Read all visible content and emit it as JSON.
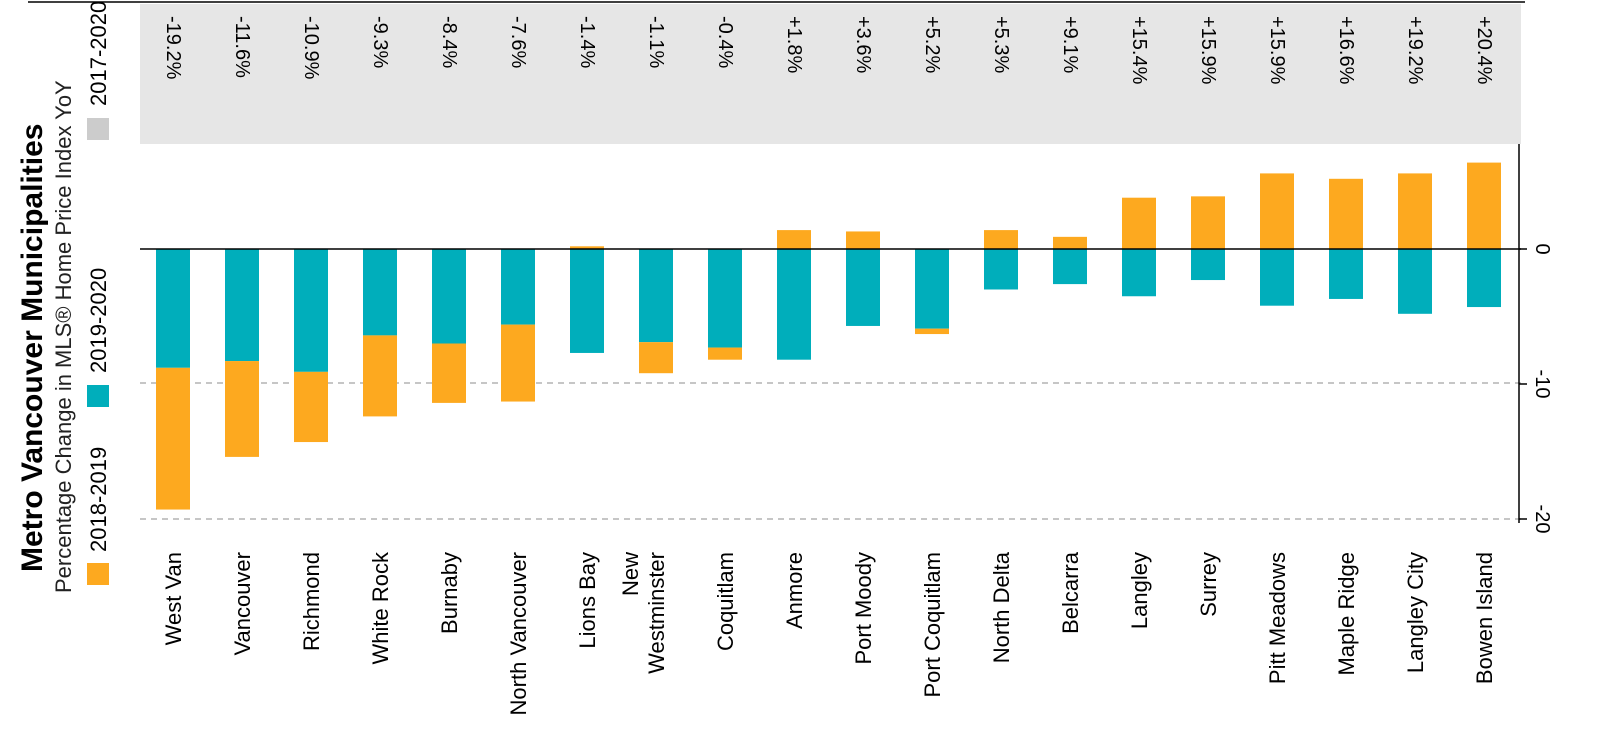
{
  "chart_data": {
    "type": "bar",
    "stacked": true,
    "orientation": "rotated-90-clockwise",
    "title": "Metro Vancouver Municipalities",
    "subtitle": "Percentage Change in MLS® Home Price Index YoY",
    "categories": [
      "West Van",
      "Vancouver",
      "Richmond",
      "White Rock",
      "Burnaby",
      "North Vancouver",
      "Lions Bay",
      "New Westminster",
      "Coquitlam",
      "Anmore",
      "Port Moody",
      "Port Coquitlam",
      "North Delta",
      "Belcarra",
      "Langley",
      "Surrey",
      "Pitt Meadows",
      "Maple Ridge",
      "Langley City",
      "Bowen Island"
    ],
    "series": [
      {
        "name": "2019-2020",
        "color": "#00aebb",
        "values": [
          -8.8,
          -8.3,
          -9.1,
          -6.4,
          -7.0,
          -5.6,
          -7.7,
          -6.9,
          -7.3,
          -8.2,
          -5.7,
          -5.9,
          -3.0,
          -2.6,
          -3.5,
          -2.3,
          -4.2,
          -3.7,
          -4.8,
          -4.3
        ]
      },
      {
        "name": "2018-2019",
        "color": "#fda91f",
        "values": [
          -10.5,
          -7.1,
          -5.2,
          -6.0,
          -4.4,
          -5.7,
          0.2,
          -2.3,
          -0.9,
          1.4,
          1.3,
          -0.4,
          1.4,
          0.9,
          3.8,
          3.9,
          5.6,
          5.2,
          5.6,
          6.4
        ]
      }
    ],
    "totals_series": {
      "name": "2017-2020",
      "labels": [
        "-19.2%",
        "-11.6%",
        "-10.9%",
        "-9.3%",
        "-8.4%",
        "-7.6%",
        "-1.4%",
        "-1.1%",
        "-0.4%",
        "+1.8%",
        "+3.6%",
        "+5.2%",
        "+5.3%",
        "+9.1%",
        "+15.4%",
        "+15.9%",
        "+15.9%",
        "+16.6%",
        "+19.2%",
        "+20.4%"
      ]
    },
    "y_ticks": [
      0,
      -10,
      -20
    ],
    "y_tick_labels": [
      "0",
      "-10",
      "-20"
    ],
    "ylim": [
      -20,
      7.7
    ],
    "reference_lines": [
      -10,
      -20
    ],
    "legend": [
      {
        "label": "2018-2019",
        "color": "#fda91f"
      },
      {
        "label": "2019-2020",
        "color": "#00aebb"
      },
      {
        "label": "2017-2020",
        "color": "#cccccc"
      }
    ],
    "colors": {
      "panel": "#e6e6e6",
      "axis": "#000000",
      "gridline": "#b3b3b3"
    }
  }
}
